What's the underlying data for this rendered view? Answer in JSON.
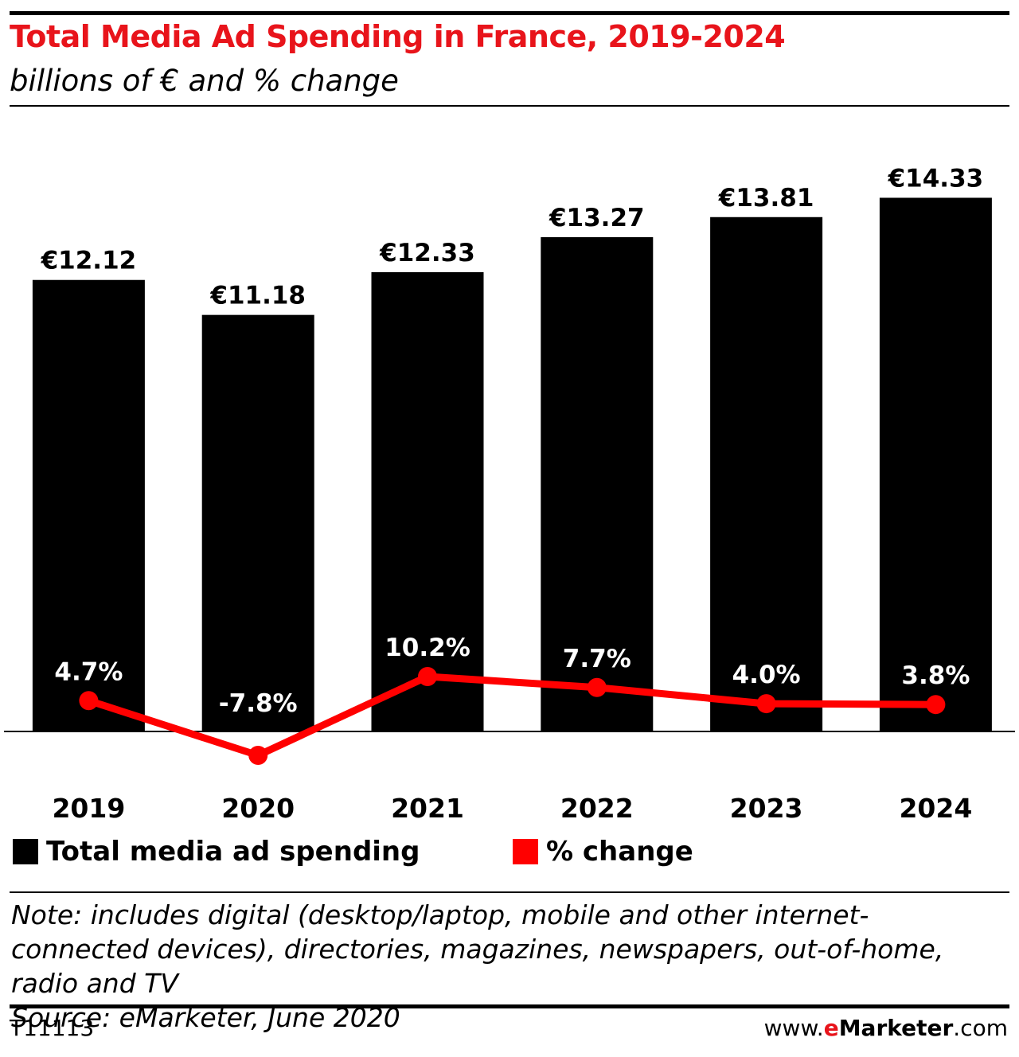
{
  "header": {
    "title": "Total Media Ad Spending in France, 2019-2024",
    "subtitle": "billions of € and % change"
  },
  "colors": {
    "bars": "#000000",
    "line": "#ff0000",
    "title": "#e8141b"
  },
  "chart_data": {
    "type": "bar",
    "title": "Total Media Ad Spending in France, 2019-2024",
    "subtitle": "billions of € and % change",
    "categories": [
      "2019",
      "2020",
      "2021",
      "2022",
      "2023",
      "2024"
    ],
    "series": [
      {
        "name": "Total media ad spending",
        "type": "bar",
        "values": [
          12.12,
          11.18,
          12.33,
          13.27,
          13.81,
          14.33
        ],
        "labels": [
          "€12.12",
          "€11.18",
          "€12.33",
          "€13.27",
          "€13.81",
          "€14.33"
        ]
      },
      {
        "name": "% change",
        "type": "line",
        "values": [
          4.7,
          -7.8,
          10.2,
          7.7,
          4.0,
          3.8
        ],
        "labels": [
          "4.7%",
          "-7.8%",
          "10.2%",
          "7.7%",
          "4.0%",
          "3.8%"
        ]
      }
    ],
    "legend_position": "bottom-left",
    "grid": false
  },
  "legend": {
    "bars_label": "Total media ad spending",
    "line_label": "% change"
  },
  "footer": {
    "note": "Note: includes digital (desktop/laptop, mobile and other internet-connected devices), directories, magazines, newspapers, out-of-home, radio and TV",
    "source": "Source: eMarketer, June 2020",
    "chart_code": "T11113",
    "brand_prefix": "www.",
    "brand_e": "e",
    "brand_name": "Marketer",
    "brand_suffix": ".com"
  }
}
